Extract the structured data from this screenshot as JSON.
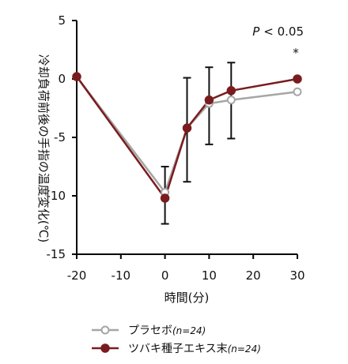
{
  "chart_data": {
    "type": "line",
    "xlabel": "時間(分)",
    "ylabel": "冷却負荷前後の手指の温度変化(℃)",
    "xlim": [
      -20,
      30
    ],
    "ylim": [
      -15,
      5
    ],
    "xticks": [
      -20,
      -10,
      0,
      10,
      20,
      30
    ],
    "xtick_labels": [
      "-20",
      "-10",
      "0",
      "10",
      "20",
      "30"
    ],
    "yticks": [
      5,
      0,
      -5,
      -10,
      -15
    ],
    "ytick_labels": [
      "5",
      "0",
      "-5",
      "-10",
      "-15"
    ],
    "grid": false,
    "legend_position": "bottom",
    "annotations": {
      "pvalue_italic": "P",
      "pvalue_rest": "< 0.05",
      "significance_mark": "*"
    },
    "series": [
      {
        "name": "プラセボ",
        "name_n": "(n=24)",
        "color": "#a6a6a6",
        "marker": "open-circle",
        "x": [
          -20,
          0,
          5,
          10,
          15,
          30
        ],
        "y": [
          0.2,
          -9.7,
          -4.2,
          -2.1,
          -1.8,
          -1.1
        ]
      },
      {
        "name": "ツバキ種子エキス末",
        "name_n": "(n=24)",
        "color": "#7a1c1f",
        "marker": "filled-circle",
        "x": [
          -20,
          0,
          5,
          10,
          15,
          30
        ],
        "y": [
          0.2,
          -10.2,
          -4.2,
          -1.8,
          -1.0,
          0.0
        ],
        "error": [
          null,
          [
            -12.4,
            -7.5
          ],
          [
            -8.8,
            0.1
          ],
          [
            -5.6,
            1.0
          ],
          [
            -5.1,
            1.4
          ],
          null
        ]
      }
    ]
  }
}
